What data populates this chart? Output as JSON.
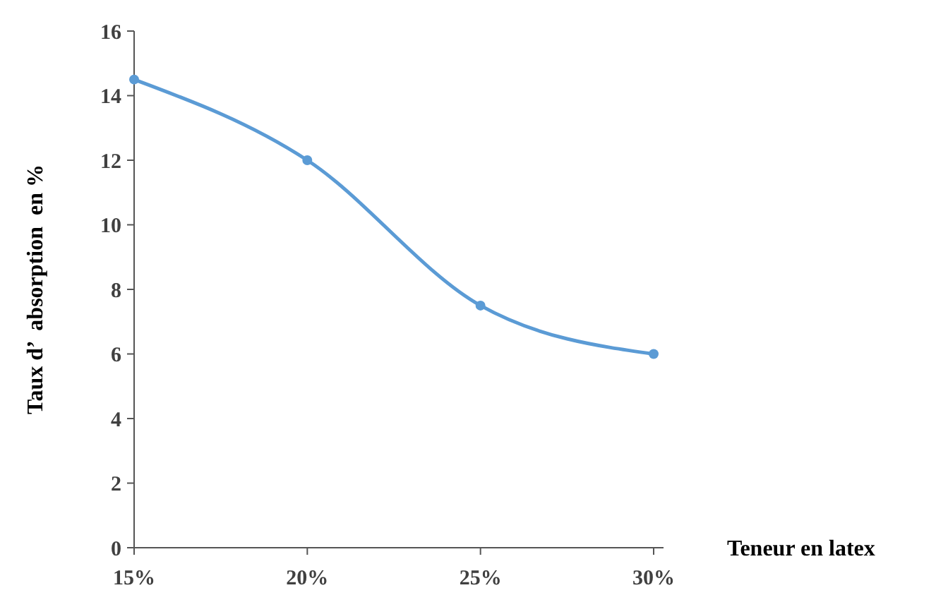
{
  "chart_data": {
    "type": "line",
    "xlabel": "Teneur en latex",
    "ylabel": "Taux d’  absorption  en %",
    "categories": [
      "15%",
      "20%",
      "25%",
      "30%"
    ],
    "series": [
      {
        "color": "#5b9bd5",
        "values": [
          14.5,
          12,
          7.5,
          6
        ]
      }
    ],
    "ylim": [
      0,
      16
    ],
    "yticks": [
      0,
      2,
      4,
      6,
      8,
      10,
      12,
      14,
      16
    ],
    "grid": false,
    "marker": "circle",
    "line_style": "solid"
  }
}
